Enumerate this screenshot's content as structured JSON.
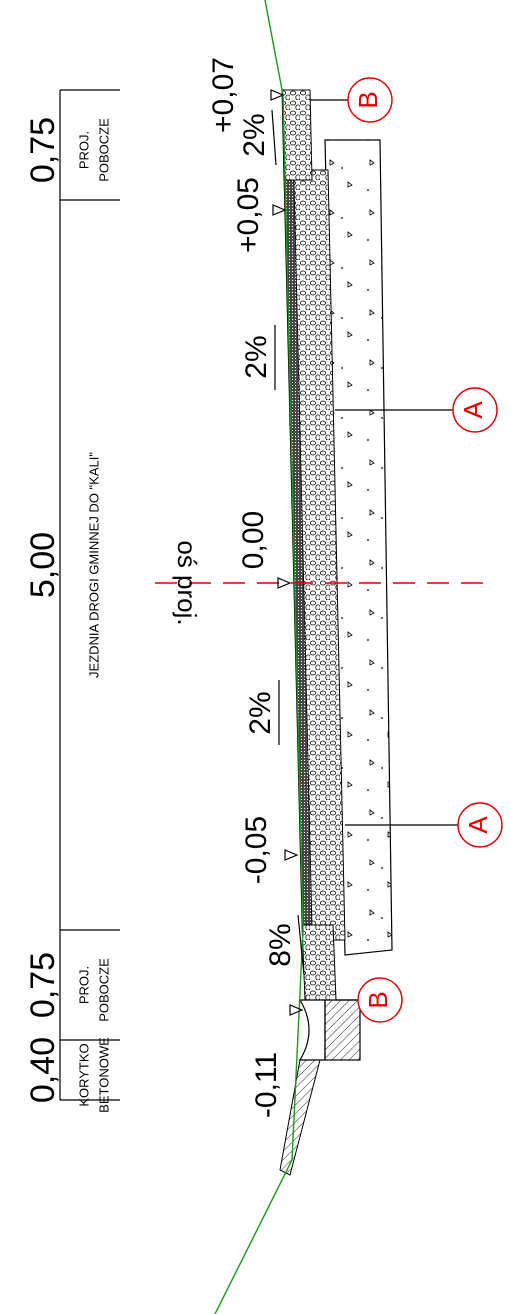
{
  "dimensions": [
    {
      "value": "0,75",
      "labels": [
        "PROJ.",
        "POBOCZE"
      ]
    },
    {
      "value": "5,00",
      "labels": [
        "JEZDNIA DROGI GMINNEJ DO \"KALI\""
      ]
    },
    {
      "value": "0,75",
      "labels": [
        "PROJ.",
        "POBOCZE"
      ]
    },
    {
      "value": "0,40",
      "labels": [
        "KORYTKO",
        "BETONOWE"
      ]
    }
  ],
  "elevations": [
    "+0,07",
    "+0,05",
    "0,00",
    "-0,05",
    "-0,11"
  ],
  "slopes": [
    "2%",
    "2%",
    "2%",
    "8%"
  ],
  "axis_label": "oś proj.",
  "markers": [
    "B",
    "A",
    "A",
    "B"
  ]
}
